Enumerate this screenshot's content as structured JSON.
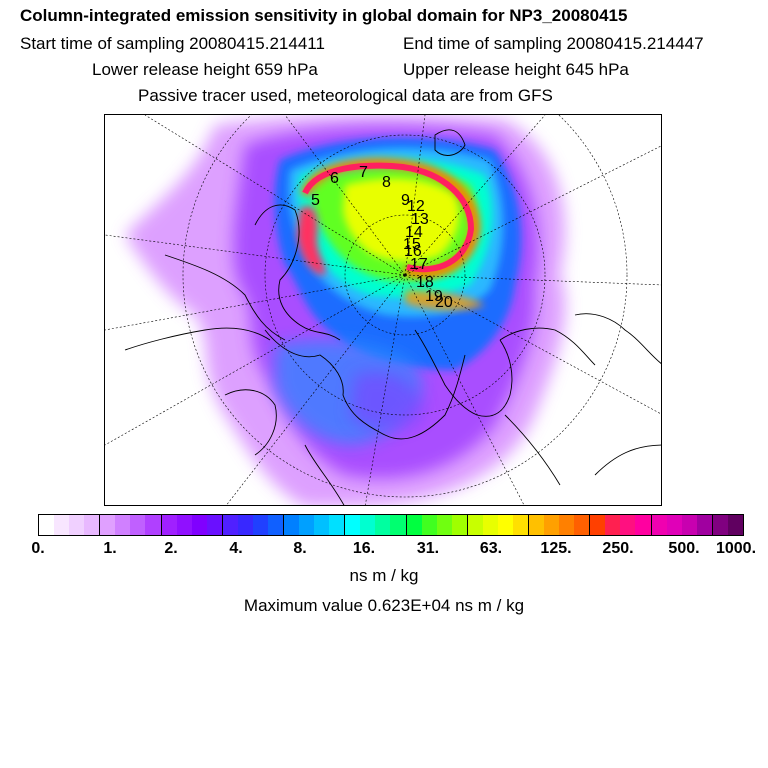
{
  "header": {
    "title": "Column-integrated emission sensitivity in global domain for NP3_20080415",
    "start_time": "Start time of sampling 20080415.214411",
    "end_time": "End time of sampling 20080415.214447",
    "lower_release": "Lower release height  659 hPa",
    "upper_release": "Upper release height  645 hPa",
    "tracer_note": "Passive tracer used, meteorological data are from GFS"
  },
  "map": {
    "projection": "north polar stereographic",
    "trajectory_labels": [
      "5",
      "6",
      "7",
      "8",
      "9",
      "12",
      "13",
      "14",
      "15",
      "16",
      "17",
      "18",
      "19",
      "20"
    ]
  },
  "colorbar": {
    "colors": [
      "#ffffff",
      "#f8e6ff",
      "#f0d0ff",
      "#e8b8ff",
      "#e0a0ff",
      "#d080ff",
      "#c060ff",
      "#b040ff",
      "#a020ff",
      "#9010ff",
      "#8000ff",
      "#6a10ff",
      "#5020ff",
      "#3828ff",
      "#2040ff",
      "#1060ff",
      "#0080ff",
      "#00a0ff",
      "#00c0ff",
      "#00e0ff",
      "#00ffff",
      "#00ffd0",
      "#00ffa0",
      "#00ff70",
      "#00ff40",
      "#40ff20",
      "#70ff10",
      "#a0ff00",
      "#c8ff00",
      "#e8ff00",
      "#ffff00",
      "#ffe000",
      "#ffc000",
      "#ffa000",
      "#ff8000",
      "#ff6000",
      "#ff4000",
      "#ff2050",
      "#ff1080",
      "#ff00a0",
      "#f000b0",
      "#e000b8",
      "#c800b0",
      "#a000a0",
      "#800080",
      "#600060"
    ],
    "tick_labels": [
      "0.",
      "1.",
      "2.",
      "4.",
      "8.",
      "16.",
      "31.",
      "63.",
      "125.",
      "250.",
      "500.",
      "1000."
    ],
    "unit": "ns m / kg"
  },
  "footer": {
    "max_value": "Maximum value  0.623E+04 ns m / kg"
  }
}
